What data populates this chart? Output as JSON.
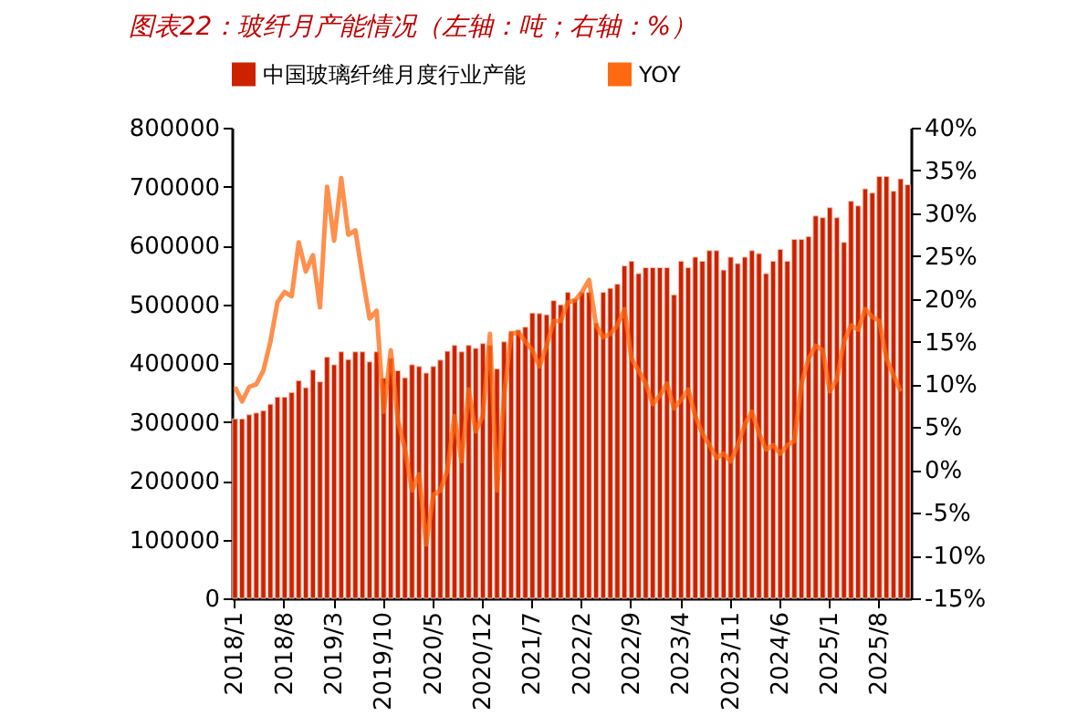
{
  "chart_data": {
    "type": "bar",
    "title": "图表22：玻纤月产能情况（左轴：吨；右轴：%）",
    "categories": [
      "2018/1",
      null,
      null,
      null,
      null,
      null,
      null,
      "2018/8",
      null,
      null,
      null,
      null,
      null,
      null,
      "2019/3",
      null,
      null,
      null,
      null,
      null,
      null,
      "2019/10",
      null,
      null,
      null,
      null,
      null,
      null,
      "2020/5",
      null,
      null,
      null,
      null,
      null,
      null,
      "2020/12",
      null,
      null,
      null,
      null,
      null,
      null,
      "2021/7",
      null,
      null,
      null,
      null,
      null,
      null,
      "2022/2",
      null,
      null,
      null,
      null,
      null,
      null,
      "2022/9",
      null,
      null,
      null,
      null,
      null,
      null,
      "2023/4",
      null,
      null,
      null,
      null,
      null,
      null,
      "2023/11",
      null,
      null,
      null,
      null,
      null,
      null,
      "2024/6",
      null,
      null,
      null,
      null,
      null,
      null,
      "2025/1",
      null,
      null,
      null,
      null,
      null,
      null,
      "2025/8",
      null,
      null,
      null,
      null
    ],
    "series": [
      {
        "name": "中国玻璃纤维月度行业产能",
        "color": "#cc2200",
        "values": [
          305000,
          305000,
          312000,
          315000,
          319000,
          330000,
          342000,
          342000,
          350000,
          370000,
          358000,
          388000,
          368000,
          410000,
          397000,
          419000,
          406000,
          419000,
          419000,
          402000,
          419000,
          374000,
          408000,
          387000,
          375000,
          397000,
          394000,
          383000,
          394000,
          405000,
          420000,
          430000,
          419000,
          430000,
          425000,
          433000,
          430000,
          390000,
          436000,
          454000,
          456000,
          461000,
          485000,
          484000,
          482000,
          506000,
          499000,
          520000,
          509000,
          520000,
          520000,
          468000,
          520000,
          527000,
          534000,
          565000,
          573000,
          552000,
          562000,
          562000,
          562000,
          562000,
          516000,
          573000,
          562000,
          580000,
          573000,
          591000,
          591000,
          558000,
          580000,
          569000,
          580000,
          591000,
          586000,
          552000,
          573000,
          593000,
          573000,
          610000,
          610000,
          615000,
          650000,
          647000,
          664000,
          647000,
          605000,
          675000,
          667000,
          696000,
          689000,
          717000,
          717000,
          692000,
          713000,
          703000
        ]
      },
      {
        "name": "YOY",
        "type": "line",
        "axis": "y2",
        "color": "#ff6a10",
        "values": [
          9.7,
          8.0,
          9.7,
          10.0,
          11.6,
          15,
          19.6,
          20.8,
          20.3,
          26.6,
          23.2,
          25.1,
          19,
          33.1,
          26.8,
          34.1,
          27.5,
          28,
          22.7,
          17.7,
          18.6,
          6.8,
          14,
          5.8,
          2.4,
          -2.4,
          -0.5,
          -8.7,
          -2.9,
          -2.4,
          0,
          6.3,
          1,
          9.4,
          4.5,
          6.3,
          15.9,
          -2.4,
          8.7,
          15.9,
          16.1,
          15,
          14,
          12.1,
          14.5,
          17.4,
          17.4,
          19.6,
          19.8,
          20.8,
          22.2,
          16.9,
          15.5,
          15.9,
          16.9,
          18.8,
          13,
          11.6,
          10.1,
          7.7,
          8.7,
          10.1,
          7.2,
          8.2,
          9.4,
          6.3,
          4.3,
          2.9,
          1.4,
          1.9,
          1.0,
          2.9,
          5.3,
          6.8,
          4.3,
          2.4,
          2.9,
          1.9,
          2.9,
          3.4,
          10.1,
          13,
          14.5,
          14,
          9.2,
          10.6,
          15,
          16.9,
          16.4,
          18.8,
          17.9,
          17.4,
          13,
          11.1,
          9.2,
          null
        ]
      }
    ],
    "ylim": [
      0,
      800000
    ],
    "yticks": [
      0,
      100000,
      200000,
      300000,
      400000,
      500000,
      600000,
      700000,
      800000
    ],
    "y2lim": [
      -15,
      40
    ],
    "y2ticks": [
      {
        "value": -15,
        "label": "-15%"
      },
      {
        "value": -10,
        "label": "-10%"
      },
      {
        "value": -5,
        "label": "-5%"
      },
      {
        "value": 0,
        "label": "0%"
      },
      {
        "value": 5,
        "label": "5%"
      },
      {
        "value": 10,
        "label": "10%"
      },
      {
        "value": 15,
        "label": "15%"
      },
      {
        "value": 20,
        "label": "20%"
      },
      {
        "value": 25,
        "label": "25%"
      },
      {
        "value": 30,
        "label": "30%"
      },
      {
        "value": 35,
        "label": "35%"
      },
      {
        "value": 40,
        "label": "40%"
      }
    ],
    "grid": false,
    "legend": "top",
    "marker": "none",
    "line_style": "solid"
  }
}
